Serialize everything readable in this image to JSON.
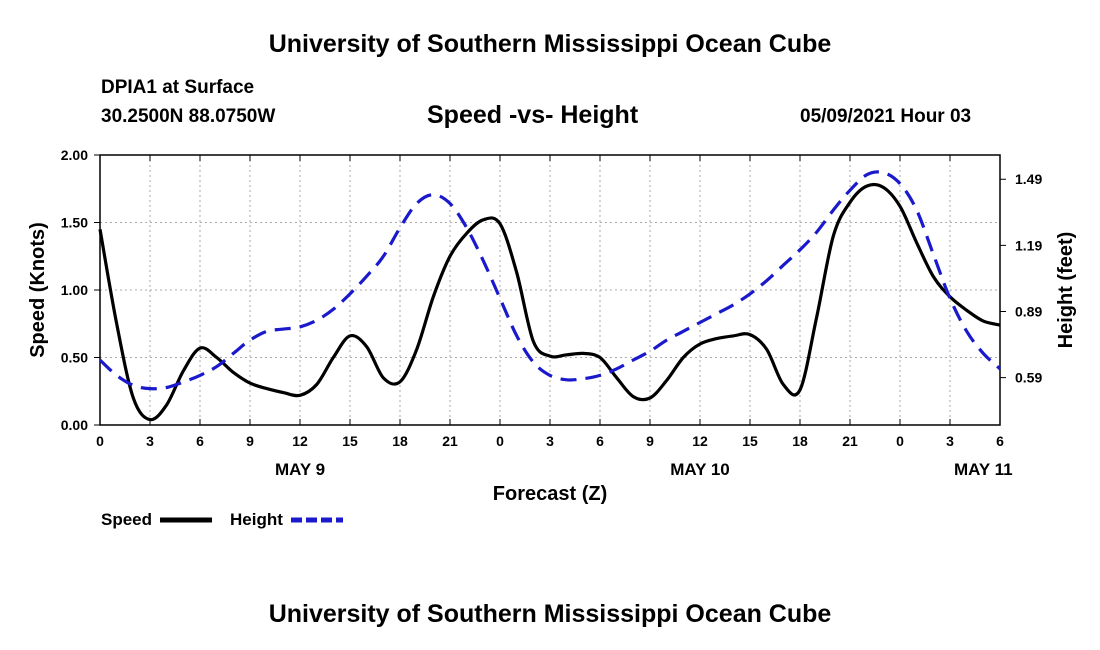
{
  "header": {
    "title": "University of Southern Mississippi Ocean Cube",
    "station": "DPIA1 at Surface",
    "coords": "30.2500N  88.0750W",
    "chart_title": "Speed -vs- Height",
    "datetime": "05/09/2021 Hour 03"
  },
  "footer": {
    "title": "University of Southern Mississippi Ocean Cube"
  },
  "legend": {
    "speed_label": "Speed",
    "height_label": "Height"
  },
  "colors": {
    "speed": "#000000",
    "height": "#1a1acc",
    "grid": "#aaaaaa"
  },
  "chart_data": {
    "type": "line",
    "title": "Speed -vs- Height",
    "xlabel": "Forecast (Z)",
    "ylabel": "Speed (Knots)",
    "y2label": "Height (feet)",
    "x_tick_hours": [
      0,
      3,
      6,
      9,
      12,
      15,
      18,
      21,
      24,
      27,
      30,
      33,
      36,
      39,
      42,
      45,
      48,
      51,
      54
    ],
    "x_tick_labels": [
      "0",
      "3",
      "6",
      "9",
      "12",
      "15",
      "18",
      "21",
      "0",
      "3",
      "6",
      "9",
      "12",
      "15",
      "18",
      "21",
      "0",
      "3",
      "6"
    ],
    "date_labels": [
      {
        "hour": 12,
        "label": "MAY 9"
      },
      {
        "hour": 36,
        "label": "MAY 10"
      },
      {
        "hour": 53,
        "label": "MAY 11"
      }
    ],
    "xlim": [
      0,
      54
    ],
    "ylim": [
      0,
      2.0
    ],
    "y_ticks": [
      0,
      0.5,
      1.0,
      1.5,
      2.0
    ],
    "y_tick_labels": [
      "0.00",
      "0.50",
      "1.00",
      "1.50",
      "2.00"
    ],
    "y2lim": [
      0.375,
      1.6
    ],
    "y2_ticks": [
      0.59,
      0.89,
      1.19,
      1.49
    ],
    "y2_tick_labels": [
      "0.59",
      "0.89",
      "1.19",
      "1.49"
    ],
    "series": [
      {
        "name": "Speed",
        "axis": "left",
        "style": "solid",
        "x": [
          0,
          1,
          2,
          3,
          4,
          5,
          6,
          7,
          8,
          9,
          10,
          11,
          12,
          13,
          14,
          15,
          16,
          17,
          18,
          19,
          20,
          21,
          22,
          23,
          24,
          25,
          26,
          27,
          28,
          29,
          30,
          31,
          32,
          33,
          34,
          35,
          36,
          37,
          38,
          39,
          40,
          41,
          42,
          43,
          44,
          45,
          46,
          47,
          48,
          49,
          50,
          51,
          52,
          53,
          54
        ],
        "values": [
          1.45,
          0.75,
          0.2,
          0.04,
          0.15,
          0.4,
          0.57,
          0.5,
          0.39,
          0.31,
          0.27,
          0.24,
          0.22,
          0.3,
          0.5,
          0.66,
          0.58,
          0.35,
          0.32,
          0.56,
          0.95,
          1.25,
          1.42,
          1.52,
          1.49,
          1.13,
          0.62,
          0.51,
          0.52,
          0.53,
          0.5,
          0.35,
          0.21,
          0.2,
          0.33,
          0.5,
          0.6,
          0.64,
          0.66,
          0.67,
          0.56,
          0.3,
          0.26,
          0.8,
          1.4,
          1.65,
          1.77,
          1.76,
          1.62,
          1.35,
          1.1,
          0.95,
          0.85,
          0.77,
          0.74
        ]
      },
      {
        "name": "Height",
        "axis": "right",
        "style": "dashed",
        "x": [
          0,
          1,
          2,
          3,
          4,
          5,
          6,
          7,
          8,
          9,
          10,
          11,
          12,
          13,
          14,
          15,
          16,
          17,
          18,
          19,
          20,
          21,
          22,
          23,
          24,
          25,
          26,
          27,
          28,
          29,
          30,
          31,
          32,
          33,
          34,
          35,
          36,
          37,
          38,
          39,
          40,
          41,
          42,
          43,
          44,
          45,
          46,
          47,
          48,
          49,
          50,
          51,
          52,
          53,
          54
        ],
        "values": [
          0.67,
          0.6,
          0.555,
          0.54,
          0.545,
          0.57,
          0.6,
          0.64,
          0.7,
          0.76,
          0.8,
          0.81,
          0.82,
          0.85,
          0.9,
          0.97,
          1.05,
          1.14,
          1.27,
          1.38,
          1.42,
          1.38,
          1.27,
          1.12,
          0.95,
          0.78,
          0.66,
          0.6,
          0.58,
          0.585,
          0.6,
          0.63,
          0.67,
          0.71,
          0.76,
          0.8,
          0.84,
          0.88,
          0.92,
          0.97,
          1.03,
          1.1,
          1.17,
          1.25,
          1.35,
          1.44,
          1.51,
          1.52,
          1.47,
          1.35,
          1.15,
          0.95,
          0.8,
          0.7,
          0.63
        ]
      }
    ]
  }
}
